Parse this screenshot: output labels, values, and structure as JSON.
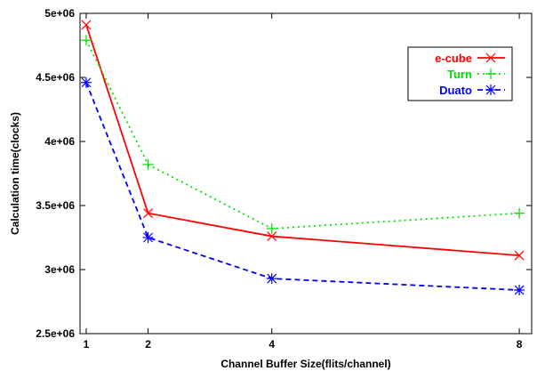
{
  "chart_data": {
    "type": "line",
    "xlabel": "Channel Buffer Size(flits/channel)",
    "ylabel": "Calculation time(clocks)",
    "x": [
      1,
      2,
      4,
      8
    ],
    "xlim": [
      0.9,
      8.2
    ],
    "ylim": [
      2500000,
      5000000
    ],
    "xticks": [
      {
        "value": 1,
        "label": "1"
      },
      {
        "value": 2,
        "label": "2"
      },
      {
        "value": 4,
        "label": "4"
      },
      {
        "value": 8,
        "label": "8"
      }
    ],
    "yticks": [
      {
        "value": 2500000,
        "label": "2.5e+06"
      },
      {
        "value": 3000000,
        "label": "3e+06"
      },
      {
        "value": 3500000,
        "label": "3.5e+06"
      },
      {
        "value": 4000000,
        "label": "4e+06"
      },
      {
        "value": 4500000,
        "label": "4.5e+06"
      },
      {
        "value": 5000000,
        "label": "5e+06"
      }
    ],
    "grid": false,
    "legend_position": "top-right",
    "series": [
      {
        "name": "e-cube",
        "values": [
          4910000,
          3440000,
          3260000,
          3110000
        ],
        "color": "#ff0000",
        "dash": "solid",
        "marker": "x"
      },
      {
        "name": "Turn",
        "values": [
          4790000,
          3820000,
          3320000,
          3440000
        ],
        "color": "#00e000",
        "dash": "dotted",
        "marker": "plus"
      },
      {
        "name": "Duato",
        "values": [
          4460000,
          3250000,
          2930000,
          2840000
        ],
        "color": "#0000ff",
        "dash": "dashed",
        "marker": "star"
      }
    ]
  }
}
